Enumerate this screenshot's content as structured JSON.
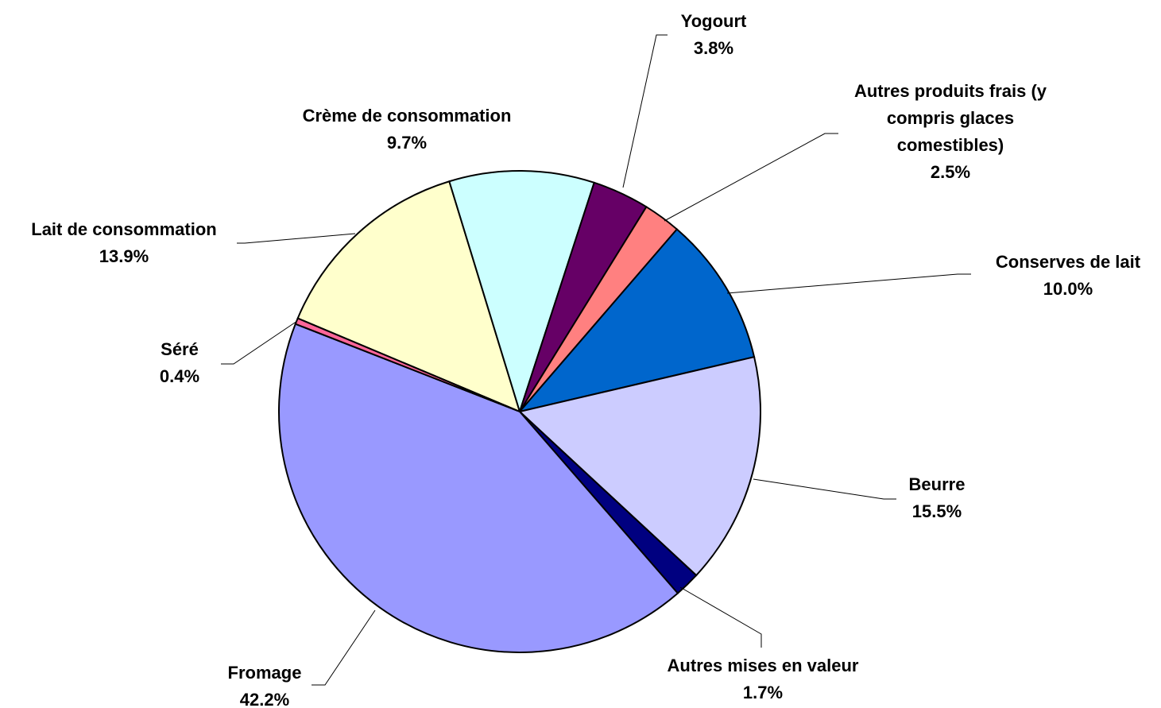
{
  "chart_data": {
    "type": "pie",
    "categories": [
      "Lait de consommation",
      "Crème de consommation",
      "Yogourt",
      "Autres produits frais (y compris glaces comestibles)",
      "Conserves de lait",
      "Beurre",
      "Autres mises en valeur",
      "Fromage",
      "Séré"
    ],
    "values": [
      13.9,
      9.7,
      3.8,
      2.5,
      10.0,
      15.5,
      1.7,
      42.2,
      0.4
    ],
    "value_labels": [
      "13.9%",
      "9.7%",
      "3.8%",
      "2.5%",
      "10.0%",
      "15.5%",
      "1.7%",
      "42.2%",
      "0.4%"
    ],
    "colors": [
      "#ffffcc",
      "#ccffff",
      "#660066",
      "#ff8080",
      "#0066cc",
      "#ccccff",
      "#000080",
      "#9999ff",
      "#ff6699"
    ]
  }
}
